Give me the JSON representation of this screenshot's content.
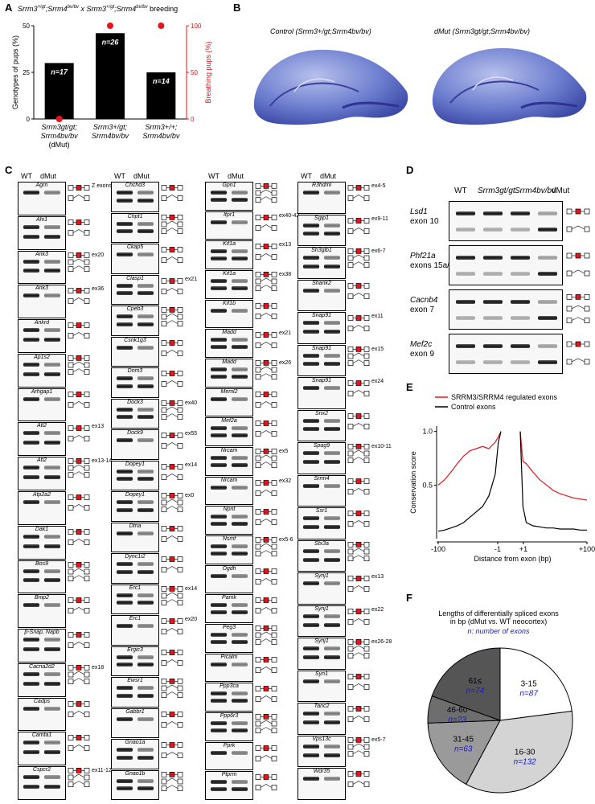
{
  "panelA": {
    "label": "A",
    "title_parts": [
      "Srrm3",
      "+/gt",
      ";Srrm4",
      "bv/bv",
      " x Srrm3",
      "+/gt",
      ";Srrm4",
      "bv/bv",
      " breeding"
    ],
    "title": "Srrm3+/gt;Srrm4bv/bv x Srrm3+/gt;Srrm4bv/bv breeding",
    "chart_data": {
      "type": "bar",
      "categories": [
        "Srrm3gt/gt; Srrm4bv/bv (dMut)",
        "Srrm3+/gt; Srrm4bv/bv",
        "Srrm3+/+; Srrm4bv/bv"
      ],
      "series": [
        {
          "name": "Genotypes of pups (%)",
          "values": [
            30,
            46,
            25
          ],
          "labels": [
            "n=17",
            "n=26",
            "n=14"
          ]
        },
        {
          "name": "Breathing pups (%)",
          "values": [
            0,
            100,
            100
          ]
        }
      ],
      "ylabel": "Genotypes of pups (%)",
      "ylim": [
        0,
        50
      ],
      "y_ticks": [
        "0",
        "25",
        "50"
      ],
      "ylabel2": "Breathing pups (%)",
      "ylim2": [
        0,
        100
      ],
      "y2_ticks": [
        "0",
        "50",
        "100"
      ],
      "bar_color": "#000000",
      "dot_color": "#e8141c"
    },
    "cat_lines": [
      [
        "Srrm3gt/gt;",
        "Srrm4bv/bv",
        "(dMut)"
      ],
      [
        "Srrm3+/gt;",
        "Srrm4bv/bv"
      ],
      [
        "Srrm3+/+;",
        "Srrm4bv/bv"
      ]
    ]
  },
  "panelB": {
    "label": "B",
    "control_title": "Control (Srrm3+/gt;Srrm4bv/bv)",
    "dmut_title": "dMut (Srrm3gt/gt;Srrm4bv/bv)"
  },
  "panelC": {
    "label": "C",
    "col_header_wt": "WT",
    "col_header_dmut": "dMut",
    "columns": [
      [
        {
          "gene": "Agrn",
          "ann": "Z exons"
        },
        {
          "gene": "Ahi1",
          "ann": ""
        },
        {
          "gene": "Ank3",
          "ann": "ex20"
        },
        {
          "gene": "Ank3",
          "ann": "ex36"
        },
        {
          "gene": "Ankrd",
          "ann": ""
        },
        {
          "gene": "Ap1s2",
          "ann": ""
        },
        {
          "gene": "Arhgap1",
          "ann": ""
        },
        {
          "gene": "Atl2",
          "ann": "ex13"
        },
        {
          "gene": "Atl2",
          "ann": "ex13-14"
        },
        {
          "gene": "Atp2a2",
          "ann": ""
        },
        {
          "gene": "Dak1",
          "ann": ""
        },
        {
          "gene": "Bos9",
          "ann": ""
        },
        {
          "gene": "Bnip2",
          "ann": ""
        },
        {
          "gene": "β-Snap, Napb",
          "ann": ""
        },
        {
          "gene": "Cacna2d2",
          "ann": "ex18"
        },
        {
          "gene": "Cadps",
          "ann": ""
        },
        {
          "gene": "Camta1",
          "ann": ""
        },
        {
          "gene": "Cspcr2",
          "ann": "ex11-12"
        }
      ],
      [
        {
          "gene": "Chchd3",
          "ann": ""
        },
        {
          "gene": "Chpt1",
          "ann": ""
        },
        {
          "gene": "Ckap5",
          "ann": ""
        },
        {
          "gene": "Clasp1",
          "ann": "ex21"
        },
        {
          "gene": "Cpeb3",
          "ann": ""
        },
        {
          "gene": "Csnk1g3",
          "ann": ""
        },
        {
          "gene": "Dnm3",
          "ann": ""
        },
        {
          "gene": "Dock3",
          "ann": "ex40"
        },
        {
          "gene": "Dock9",
          "ann": "ex55"
        },
        {
          "gene": "Dopey1",
          "ann": "ex14"
        },
        {
          "gene": "Dopey1",
          "ann": "ex0"
        },
        {
          "gene": "Dtna",
          "ann": ""
        },
        {
          "gene": "Dync1i2",
          "ann": ""
        },
        {
          "gene": "Erc1",
          "ann": "ex14"
        },
        {
          "gene": "Erc1",
          "ann": "ex20"
        },
        {
          "gene": "Ergic3",
          "ann": ""
        },
        {
          "gene": "Ewsr1",
          "ann": ""
        },
        {
          "gene": "Gabbr1",
          "ann": ""
        },
        {
          "gene": "Gnao1a",
          "ann": ""
        },
        {
          "gene": "Gnao1b",
          "ann": ""
        }
      ],
      [
        {
          "gene": "Gpn1",
          "ann": ""
        },
        {
          "gene": "Itpr1",
          "ann": "ex40-42"
        },
        {
          "gene": "Kif1a",
          "ann": "ex13"
        },
        {
          "gene": "Kif1a",
          "ann": "ex38"
        },
        {
          "gene": "Kif1b",
          "ann": ""
        },
        {
          "gene": "Madd",
          "ann": "ex21"
        },
        {
          "gene": "Madd",
          "ann": "ex26"
        },
        {
          "gene": "Meml2",
          "ann": ""
        },
        {
          "gene": "Mef2a",
          "ann": ""
        },
        {
          "gene": "Nrcam",
          "ann": "ex5"
        },
        {
          "gene": "Nrcam",
          "ann": "ex32"
        },
        {
          "gene": "Npnt",
          "ann": ""
        },
        {
          "gene": "Nsmf",
          "ann": "ex5-6"
        },
        {
          "gene": "Ogdh",
          "ann": ""
        },
        {
          "gene": "Pamk",
          "ann": ""
        },
        {
          "gene": "Peg3",
          "ann": ""
        },
        {
          "gene": "Picalm",
          "ann": ""
        },
        {
          "gene": "Ppp3ca",
          "ann": ""
        },
        {
          "gene": "Ppp6r3",
          "ann": ""
        },
        {
          "gene": "Pprk",
          "ann": ""
        },
        {
          "gene": "Ptprm",
          "ann": ""
        }
      ],
      [
        {
          "gene": "R3hdml",
          "ann": "ex4-5"
        },
        {
          "gene": "Sgip1",
          "ann": "ex9-11"
        },
        {
          "gene": "Sh3glb1",
          "ann": "ex6-7"
        },
        {
          "gene": "Shank2",
          "ann": ""
        },
        {
          "gene": "Snap91",
          "ann": "ex11"
        },
        {
          "gene": "Snap91",
          "ann": "ex15"
        },
        {
          "gene": "Snap91",
          "ann": "ex24"
        },
        {
          "gene": "Snx2",
          "ann": ""
        },
        {
          "gene": "Spag9",
          "ann": "ex10-11"
        },
        {
          "gene": "Srrm4",
          "ann": ""
        },
        {
          "gene": "Ssr1",
          "ann": ""
        },
        {
          "gene": "Stx3a",
          "ann": ""
        },
        {
          "gene": "Synj1",
          "ann": "ex13"
        },
        {
          "gene": "Synj1",
          "ann": "ex22"
        },
        {
          "gene": "Synj1",
          "ann": "ex26-28"
        },
        {
          "gene": "Syn1",
          "ann": ""
        },
        {
          "gene": "Tanc2",
          "ann": ""
        },
        {
          "gene": "Vps13c",
          "ann": "ex5-7"
        },
        {
          "gene": "Wdr35",
          "ann": ""
        }
      ]
    ]
  },
  "panelD": {
    "label": "D",
    "headers": [
      "WT",
      "Srrm3gt/gt",
      "Srrm4bv/bv",
      "dMut"
    ],
    "rows": [
      {
        "gene": "Lsd1",
        "exon": "exon 10"
      },
      {
        "gene": "Phf21a",
        "exon": "exons 15a/15b"
      },
      {
        "gene": "Cacnb4",
        "exon": "exon 7"
      },
      {
        "gene": "Mef2c",
        "exon": "exon 9"
      }
    ]
  },
  "panelE": {
    "label": "E",
    "chart_data": {
      "type": "line",
      "series": [
        {
          "name": "SRRM3/SRRM4 regulated exons",
          "color": "#e8141c",
          "x": [
            -100,
            -90,
            -80,
            -70,
            -60,
            -50,
            -40,
            -30,
            -20,
            -10,
            -5,
            -1,
            1,
            5,
            10,
            20,
            30,
            40,
            50,
            60,
            70,
            80,
            90,
            100
          ],
          "y": [
            0.5,
            0.55,
            0.62,
            0.7,
            0.77,
            0.82,
            0.84,
            0.86,
            0.84,
            0.9,
            0.95,
            1.0,
            1.0,
            0.72,
            0.7,
            0.62,
            0.55,
            0.5,
            0.45,
            0.42,
            0.4,
            0.38,
            0.37,
            0.36
          ]
        },
        {
          "name": "Control exons",
          "color": "#000000",
          "x": [
            -100,
            -90,
            -80,
            -70,
            -60,
            -50,
            -40,
            -30,
            -20,
            -10,
            -5,
            -1,
            1,
            5,
            10,
            20,
            30,
            40,
            50,
            60,
            70,
            80,
            90,
            100
          ],
          "y": [
            0.07,
            0.08,
            0.1,
            0.12,
            0.15,
            0.2,
            0.25,
            0.3,
            0.4,
            0.6,
            0.9,
            1.0,
            1.0,
            0.3,
            0.15,
            0.12,
            0.11,
            0.1,
            0.1,
            0.09,
            0.09,
            0.09,
            0.08,
            0.08
          ]
        }
      ],
      "xlabel": "Distance from exon (bp)",
      "ylabel": "Conservation score",
      "x_ticks": [
        "-100",
        "-1",
        "+1",
        "+100"
      ],
      "y_ticks": [
        "0.5",
        "1.0"
      ],
      "ylim": [
        0,
        1.05
      ]
    }
  },
  "panelF": {
    "label": "F",
    "title_line1": "Lengths of differentially spliced exons",
    "title_line2": "in bp (dMut vs. WT neocortex)",
    "subtitle": "n: number of exons",
    "chart_data": {
      "type": "pie",
      "slices": [
        {
          "label": "3-15",
          "n": "n=87",
          "value": 87,
          "color": "#ffffff"
        },
        {
          "label": "16-30",
          "n": "n=132",
          "value": 132,
          "color": "#d4d4d4"
        },
        {
          "label": "31-45",
          "n": "n=63",
          "value": 63,
          "color": "#9a9a9a"
        },
        {
          "label": "46-60",
          "n": "n=23",
          "value": 23,
          "color": "#6e6e6e"
        },
        {
          "label": "61≤",
          "n": "n=74",
          "value": 74,
          "color": "#555555"
        }
      ]
    },
    "n_color": "#1a1acc"
  }
}
